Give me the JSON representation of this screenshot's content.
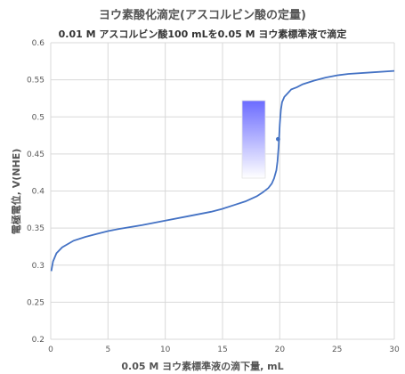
{
  "chart_data": {
    "type": "line",
    "title": "ヨウ素酸化滴定(アスコルビン酸の定量)",
    "subtitle": "0.01 M アスコルビン酸100 mLを0.05 M ヨウ素標準液で滴定",
    "xlabel": "0.05 M ヨウ素標準液の滴下量, mL",
    "ylabel": "電極電位, V(NHE)",
    "xlim": [
      0,
      30
    ],
    "ylim": [
      0.2,
      0.6
    ],
    "x_ticks": [
      "0",
      "5",
      "10",
      "15",
      "20",
      "25",
      "30"
    ],
    "y_ticks": [
      "0.2",
      "0.25",
      "0.3",
      "0.35",
      "0.4",
      "0.45",
      "0.5",
      "0.55",
      "0.6"
    ],
    "grid": true,
    "line_color": "#4472C4",
    "series": [
      {
        "x": [
          0.05,
          0.2,
          0.5,
          1,
          2,
          3,
          4,
          5,
          6,
          8,
          10,
          12,
          14,
          15,
          16,
          17,
          18,
          18.5,
          19,
          19.3,
          19.5,
          19.7,
          19.8,
          19.9,
          20.0,
          20.1,
          20.2,
          20.4,
          20.7,
          21,
          21.5,
          22,
          23,
          24,
          25,
          26,
          28,
          30
        ],
        "y": [
          0.292,
          0.305,
          0.316,
          0.324,
          0.333,
          0.338,
          0.342,
          0.346,
          0.349,
          0.354,
          0.36,
          0.366,
          0.372,
          0.376,
          0.381,
          0.386,
          0.393,
          0.398,
          0.404,
          0.41,
          0.417,
          0.428,
          0.44,
          0.46,
          0.49,
          0.51,
          0.52,
          0.527,
          0.532,
          0.537,
          0.54,
          0.544,
          0.549,
          0.553,
          0.556,
          0.558,
          0.56,
          0.562
        ]
      }
    ],
    "marker_point": {
      "x": 19.85,
      "y": 0.47
    }
  }
}
